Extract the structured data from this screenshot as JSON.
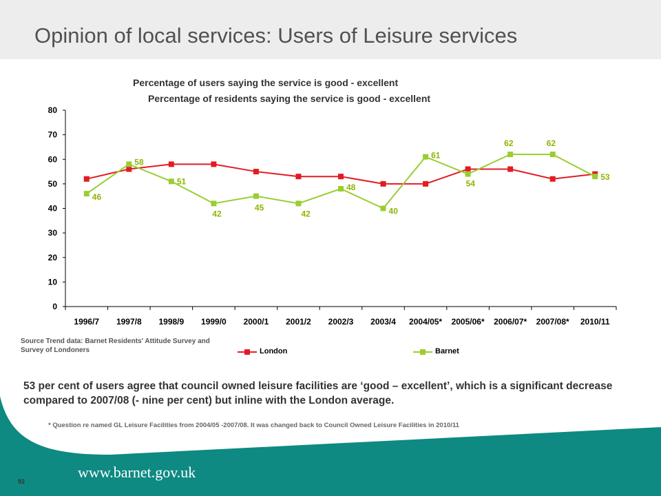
{
  "slide": {
    "title": "Opinion of local services: Users of Leisure services",
    "source_note": "Source Trend data: Barnet Residents' Attitude Survey and Survey of Londoners",
    "statement": "53 per cent of users agree that council owned leisure facilities are ‘good – excellent’, which is a significant decrease compared to 2007/08 (- nine per cent) but inline with the London average.",
    "footnote": "* Question re named GL Leisure Facilities from 2004/05 -2007/08. It was changed back to Council Owned Leisure Facilities in 2010/11",
    "page_number": "92",
    "url": "www.barnet.gov.uk"
  },
  "colors": {
    "london": "#e31b23",
    "barnet": "#9acd32",
    "teal_footer": "#0e8a82",
    "label_barnet": "#8db600"
  },
  "chart_data": {
    "type": "line",
    "subtitle_lines": [
      "Percentage of users saying the service is good - excellent",
      "Percentage of residents saying the service is good - excellent"
    ],
    "categories": [
      "1996/7",
      "1997/8",
      "1998/9",
      "1999/0",
      "2000/1",
      "2001/2",
      "2002/3",
      "2003/4",
      "2004/05*",
      "2005/06*",
      "2006/07*",
      "2007/08*",
      "2010/11"
    ],
    "ylim": [
      0,
      80
    ],
    "yticks": [
      0,
      10,
      20,
      30,
      40,
      50,
      60,
      70,
      80
    ],
    "grid": false,
    "legend_position": "bottom",
    "series": [
      {
        "name": "London",
        "values": [
          52,
          56,
          58,
          58,
          55,
          53,
          53,
          50,
          50,
          56,
          56,
          52,
          54
        ],
        "labelled": false
      },
      {
        "name": "Barnet",
        "values": [
          46,
          58,
          51,
          42,
          45,
          42,
          48,
          40,
          61,
          54,
          62,
          62,
          53
        ],
        "labelled": true
      }
    ]
  }
}
